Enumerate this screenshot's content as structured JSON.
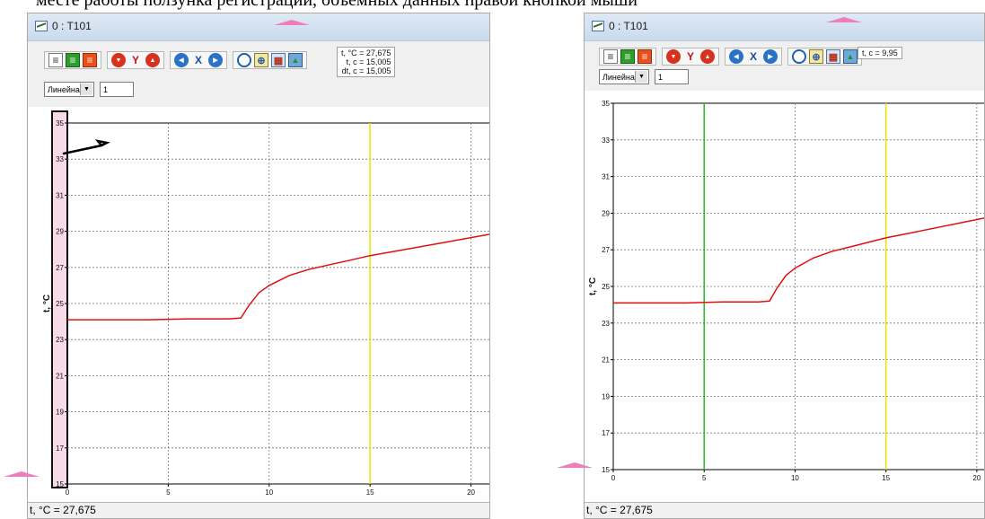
{
  "top_text": "месте работы ползунка регистрации, объемных данных правой кнопкой мыши",
  "windows": [
    {
      "title": "0 : T101",
      "readout_lines": [
        "t, °C = 27,675",
        "t, c = 15,005",
        "dt, c = 15,005"
      ],
      "scale_select": "Линейная",
      "scale_value": "1",
      "axis_y_label": "t, °C",
      "status": "t, °C = 27,675",
      "x_ticks": [
        "0",
        "5",
        "10",
        "15",
        "20"
      ],
      "y_ticks": [
        "15",
        "17",
        "19",
        "21",
        "23",
        "25",
        "27",
        "29",
        "31",
        "33",
        "35"
      ]
    },
    {
      "title": "0 : T101",
      "readout_lines": [
        "t, c = 9,95"
      ],
      "scale_select": "Линейная",
      "scale_value": "1",
      "axis_y_label": "t, °C",
      "status": "t, °C = 27,675",
      "x_ticks": [
        "0",
        "5",
        "10",
        "15",
        "20"
      ],
      "y_ticks": [
        "15",
        "17",
        "19",
        "21",
        "23",
        "25",
        "27",
        "29",
        "31",
        "33",
        "35"
      ]
    }
  ],
  "chart_data": [
    {
      "type": "line",
      "xlim": [
        0,
        21
      ],
      "ylim": [
        15,
        35
      ],
      "cursor_lines": [
        {
          "x": 15,
          "color": "#f0e000"
        }
      ],
      "series": [
        {
          "color": "#e01010",
          "x": [
            0,
            2,
            4,
            6,
            8,
            8.6,
            9,
            9.5,
            10,
            11,
            12,
            13,
            14,
            15,
            16,
            17,
            18,
            19,
            20,
            21
          ],
          "y": [
            24.1,
            24.1,
            24.1,
            24.15,
            24.15,
            24.2,
            24.9,
            25.6,
            26.0,
            26.55,
            26.9,
            27.15,
            27.4,
            27.65,
            27.85,
            28.05,
            28.25,
            28.45,
            28.65,
            28.85
          ]
        }
      ]
    },
    {
      "type": "line",
      "xlim": [
        0,
        20.5
      ],
      "ylim": [
        15,
        35
      ],
      "cursor_lines": [
        {
          "x": 5,
          "color": "#22c022"
        },
        {
          "x": 15,
          "color": "#f0e000"
        }
      ],
      "series": [
        {
          "color": "#e01010",
          "x": [
            0,
            2,
            4,
            6,
            8,
            8.6,
            9,
            9.5,
            10,
            11,
            12,
            13,
            14,
            15,
            16,
            17,
            18,
            19,
            20,
            20.5
          ],
          "y": [
            24.1,
            24.1,
            24.1,
            24.15,
            24.15,
            24.2,
            24.9,
            25.6,
            26.0,
            26.55,
            26.9,
            27.15,
            27.4,
            27.65,
            27.85,
            28.05,
            28.25,
            28.45,
            28.65,
            28.75
          ]
        }
      ]
    }
  ]
}
